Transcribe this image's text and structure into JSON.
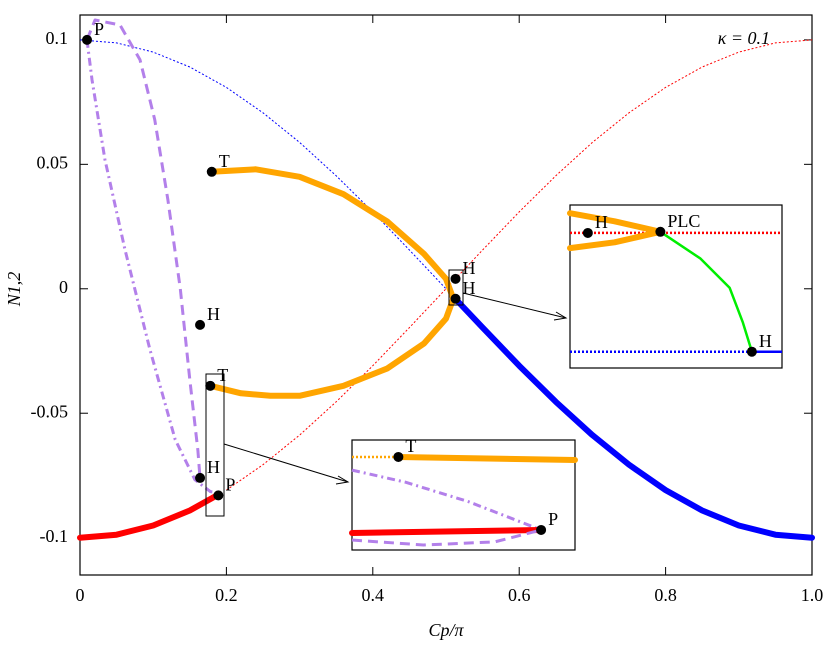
{
  "chart_data": [
    {
      "type": "line",
      "x_label": "Cp/π",
      "y_label": "N1,2",
      "annotation": "κ = 0.1",
      "xlim": [
        0,
        1
      ],
      "ylim": [
        -0.115,
        0.11
      ],
      "xticks": [
        0,
        0.2,
        0.4,
        0.6,
        0.8,
        {
          "value": 1,
          "label": "1.0"
        }
      ],
      "yticks": [
        -0.1,
        -0.05,
        0,
        0.05,
        0.1
      ],
      "series": [
        {
          "color": "#0000ff",
          "style": "dotted",
          "x": [
            0,
            0.05,
            0.1,
            0.15,
            0.2,
            0.25,
            0.3,
            0.35,
            0.4,
            0.45,
            0.5
          ],
          "values": [
            0.1,
            0.0988,
            0.0951,
            0.0891,
            0.0809,
            0.0707,
            0.0588,
            0.0454,
            0.0309,
            0.0156,
            0
          ]
        },
        {
          "color": "#ff0000",
          "style": "dotted",
          "x": [
            0.2,
            0.25,
            0.3,
            0.35,
            0.4,
            0.45,
            0.5,
            0.55,
            0.6,
            0.65,
            0.7,
            0.75,
            0.8,
            0.85,
            0.9,
            0.95,
            1
          ],
          "values": [
            -0.0809,
            -0.0707,
            -0.0588,
            -0.0454,
            -0.0309,
            -0.0156,
            0,
            0.0156,
            0.0309,
            0.0454,
            0.0588,
            0.0707,
            0.0809,
            0.0891,
            0.0951,
            0.0988,
            0.1
          ]
        },
        {
          "color": "#0000ff",
          "style": "thick",
          "x": [
            0.515,
            0.55,
            0.6,
            0.65,
            0.7,
            0.75,
            0.8,
            0.85,
            0.9,
            0.95,
            1
          ],
          "values": [
            -0.0047,
            -0.0156,
            -0.0309,
            -0.0454,
            -0.0588,
            -0.0707,
            -0.0809,
            -0.0891,
            -0.0951,
            -0.0988,
            -0.1
          ]
        },
        {
          "color": "#ff0000",
          "style": "thick",
          "x": [
            0,
            0.05,
            0.1,
            0.15,
            0.189
          ],
          "values": [
            -0.1,
            -0.0988,
            -0.0951,
            -0.0891,
            -0.0827
          ]
        },
        {
          "color": "#ffa500",
          "style": "thick",
          "x": [
            0.18,
            0.24,
            0.3,
            0.36,
            0.42,
            0.47,
            0.5,
            0.51,
            0.5,
            0.47,
            0.42,
            0.36,
            0.3,
            0.26,
            0.22,
            0.178
          ],
          "values": [
            0.047,
            0.048,
            0.045,
            0.038,
            0.027,
            0.014,
            0.004,
            -0.004,
            -0.012,
            -0.022,
            -0.032,
            -0.039,
            -0.043,
            -0.043,
            -0.042,
            -0.039
          ]
        },
        {
          "color": "#b380ea",
          "style": "dashed",
          "x": [
            0.0096,
            0.0205,
            0.0546,
            0.082,
            0.102,
            0.12,
            0.137,
            0.15,
            0.161,
            0.164
          ],
          "values": [
            0.1,
            0.108,
            0.106,
            0.092,
            0.068,
            0.036,
            0,
            -0.0365,
            -0.065,
            -0.076
          ]
        },
        {
          "color": "#b380ea",
          "style": "dash-dot",
          "x": [
            0.0096,
            0.0164,
            0.034,
            0.0615,
            0.0956,
            0.13,
            0.157,
            0.178,
            0.189
          ],
          "values": [
            0.1,
            0.084,
            0.052,
            0.0157,
            -0.0245,
            -0.0606,
            -0.0767,
            -0.0815,
            -0.0819
          ]
        }
      ],
      "points": [
        {
          "label": "P",
          "x": 0.0096,
          "y": 0.1
        },
        {
          "label": "T",
          "x": 0.18,
          "y": 0.047
        },
        {
          "label": "H",
          "x": 0.164,
          "y": -0.0145
        },
        {
          "label": "T",
          "x": 0.178,
          "y": -0.039
        },
        {
          "label": "H",
          "x": 0.164,
          "y": -0.076
        },
        {
          "label": "P",
          "x": 0.189,
          "y": -0.083
        },
        {
          "label": "H",
          "x": 0.513,
          "y": 0.004
        },
        {
          "label": "H",
          "x": 0.513,
          "y": -0.004
        }
      ]
    },
    {
      "type": "line",
      "xlim": [
        0.504,
        0.523
      ],
      "ylim": [
        -0.0064,
        0.0076
      ],
      "series": [
        {
          "color": "#ff0000",
          "style": "dotted",
          "x": [
            0.504,
            0.523
          ],
          "values": [
            0.0052,
            0.0052
          ]
        },
        {
          "color": "#ffa500",
          "style": "thick",
          "x": [
            0.504,
            0.508,
            0.5121,
            0.508,
            0.504
          ],
          "values": [
            0.0069,
            0.0062,
            0.0053,
            0.0044,
            0.0039
          ]
        },
        {
          "color": "#00ee00",
          "style": "solid",
          "x": [
            0.5121,
            0.5157,
            0.5183,
            0.5195,
            0.5203
          ],
          "values": [
            0.0053,
            0.003,
            0.0005,
            -0.0025,
            -0.005
          ]
        },
        {
          "color": "#0000ff",
          "style": "dotted",
          "x": [
            0.504,
            0.5203
          ],
          "values": [
            -0.005,
            -0.005
          ]
        },
        {
          "color": "#0000ff",
          "style": "solid",
          "x": [
            0.5203,
            0.523
          ],
          "values": [
            -0.005,
            -0.005
          ]
        }
      ],
      "points": [
        {
          "label": "H",
          "x": 0.5056,
          "y": 0.0052
        },
        {
          "label": "PLC",
          "x": 0.5121,
          "y": 0.0053
        },
        {
          "label": "H",
          "x": 0.5203,
          "y": -0.005
        }
      ]
    },
    {
      "type": "line",
      "xlim": [
        0.172,
        0.197
      ],
      "ylim": [
        -0.0912,
        -0.0341
      ],
      "series": [
        {
          "color": "#ffa500",
          "style": "dotted",
          "x": [
            0.172,
            0.1772
          ],
          "values": [
            -0.0429,
            -0.0429
          ]
        },
        {
          "color": "#ffa500",
          "style": "thick",
          "x": [
            0.1772,
            0.197
          ],
          "values": [
            -0.0429,
            -0.0445
          ]
        },
        {
          "color": "#b380ea",
          "style": "dash-dot",
          "x": [
            0.172,
            0.178,
            0.185,
            0.19,
            0.1932
          ],
          "values": [
            -0.0497,
            -0.056,
            -0.066,
            -0.075,
            -0.0808
          ]
        },
        {
          "color": "#ff0000",
          "style": "thick",
          "x": [
            0.172,
            0.1932
          ],
          "values": [
            -0.0824,
            -0.0808
          ]
        },
        {
          "color": "#b380ea",
          "style": "dashed",
          "x": [
            0.172,
            0.18,
            0.188,
            0.1932
          ],
          "values": [
            -0.086,
            -0.0886,
            -0.087,
            -0.0808
          ]
        }
      ],
      "points": [
        {
          "label": "T",
          "x": 0.1772,
          "y": -0.0429
        },
        {
          "label": "P",
          "x": 0.1932,
          "y": -0.0808
        }
      ]
    }
  ]
}
